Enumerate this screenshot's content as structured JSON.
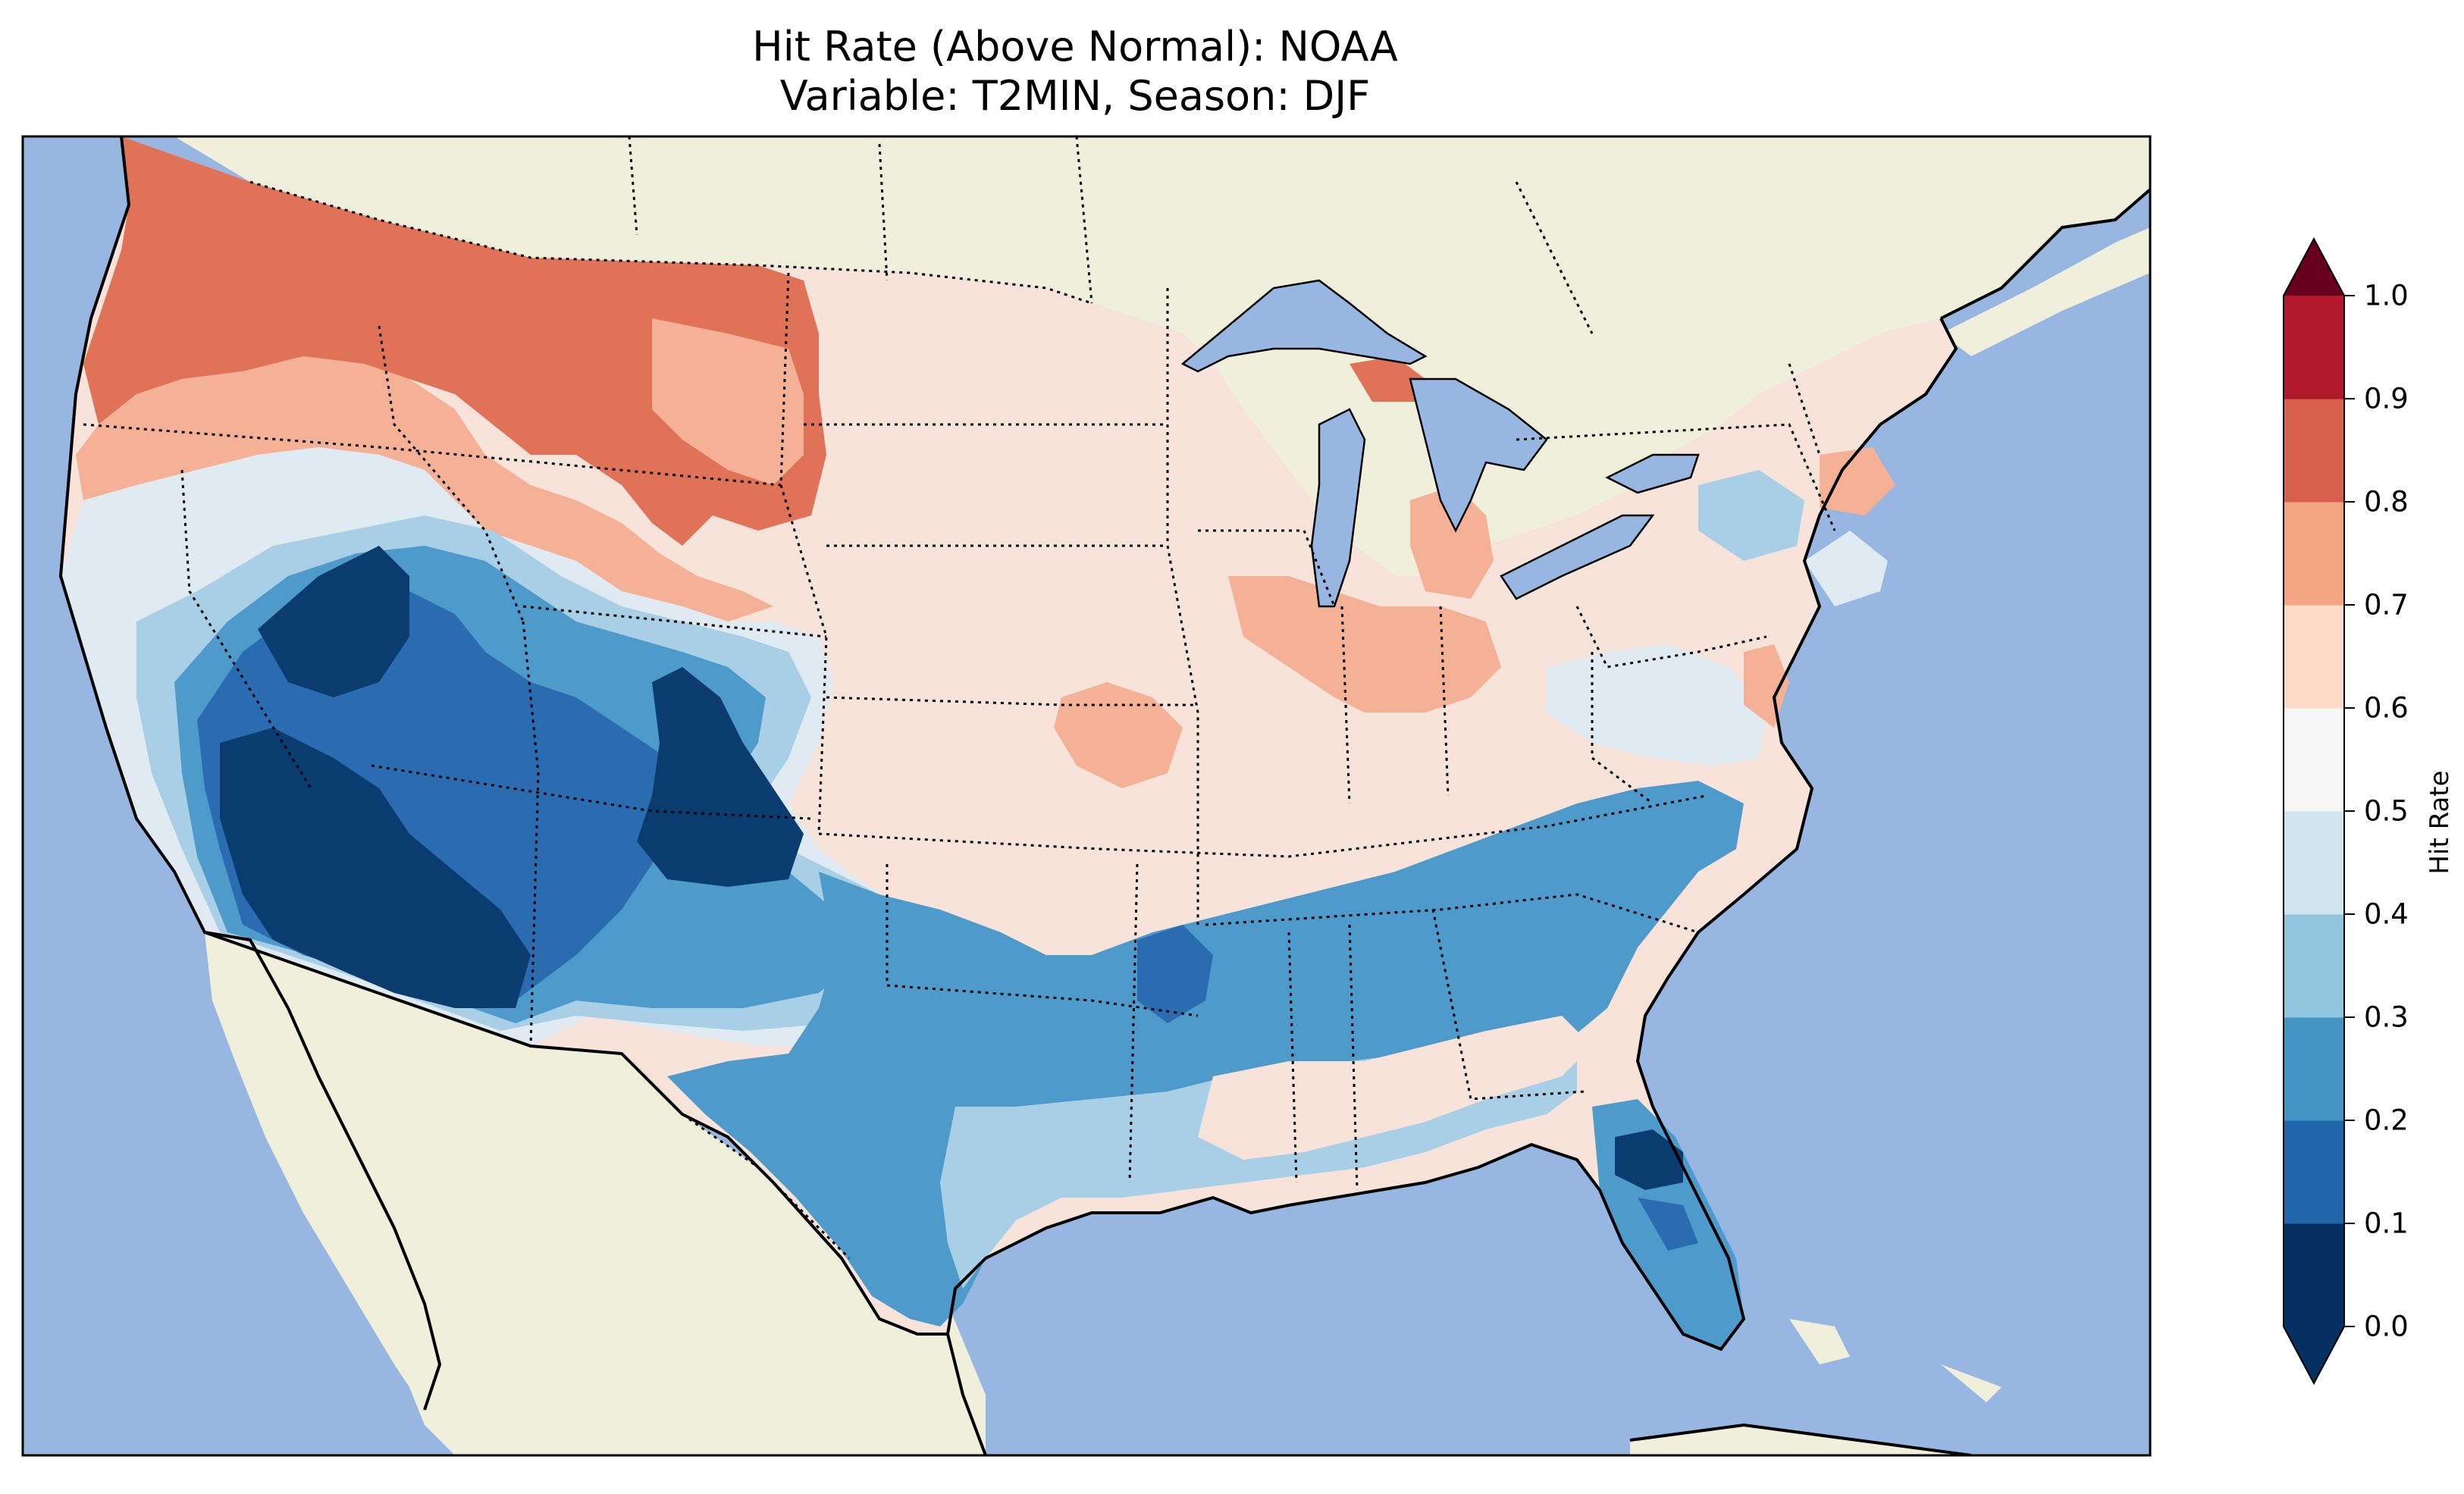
{
  "title": {
    "line1": "Hit Rate (Above Normal): NOAA",
    "line2": "Variable: T2MIN, Season: DJF"
  },
  "colorbar": {
    "label": "Hit Rate",
    "ticks": [
      "0.0",
      "0.1",
      "0.2",
      "0.3",
      "0.4",
      "0.5",
      "0.6",
      "0.7",
      "0.8",
      "0.9",
      "1.0"
    ],
    "bin_colors": [
      "#053061",
      "#2166ac",
      "#4393c3",
      "#92c5de",
      "#d1e5f0",
      "#f7f7f7",
      "#fddbc7",
      "#f4a582",
      "#d6604d",
      "#b2182b",
      "#67001f"
    ],
    "extend": "both"
  },
  "map": {
    "ocean_color": "#97b6e1",
    "land_color": "#efefdb",
    "region": "Contiguous United States",
    "data_colors": {
      "c0": "#0b3c70",
      "c1": "#2b6cb0",
      "c2": "#4e9bcb",
      "c3": "#a8cfe5",
      "c4": "#dfeaf2",
      "c5": "#f8e3db",
      "c6": "#f4b195",
      "c7": "#e07257"
    }
  }
}
